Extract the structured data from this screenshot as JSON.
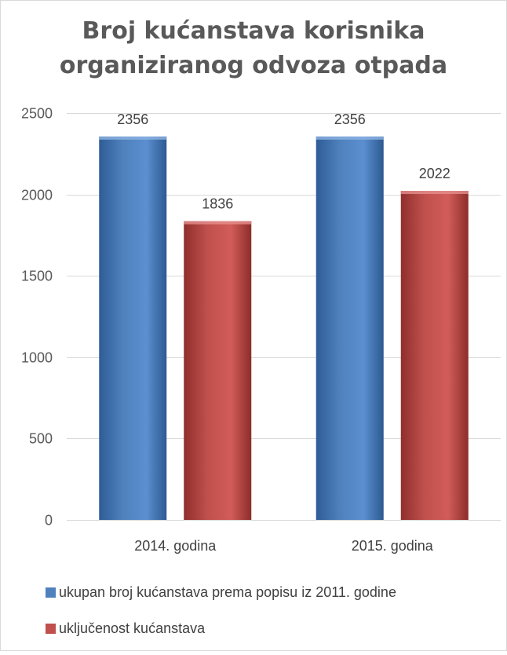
{
  "chart_data": {
    "type": "bar",
    "title": "Broj kućanstava korisnika organiziranog odvoza otpada",
    "title_lines": [
      "Broj kućanstava korisnika",
      "organiziranog odvoza otpada"
    ],
    "categories": [
      "2014. godina",
      "2015. godina"
    ],
    "series": [
      {
        "name": "ukupan broj kućanstava prema popisu iz 2011. godine",
        "values": [
          2356,
          2356
        ],
        "color": "#4f81bd"
      },
      {
        "name": "uključenost kućanstava",
        "values": [
          1836,
          2022
        ],
        "color": "#c0504d"
      }
    ],
    "yticks": [
      0,
      500,
      1000,
      1500,
      2000,
      2500
    ],
    "ylim": [
      0,
      2500
    ],
    "xlabel": "",
    "ylabel": "",
    "grid": true,
    "data_labels": true,
    "legend_position": "bottom"
  }
}
